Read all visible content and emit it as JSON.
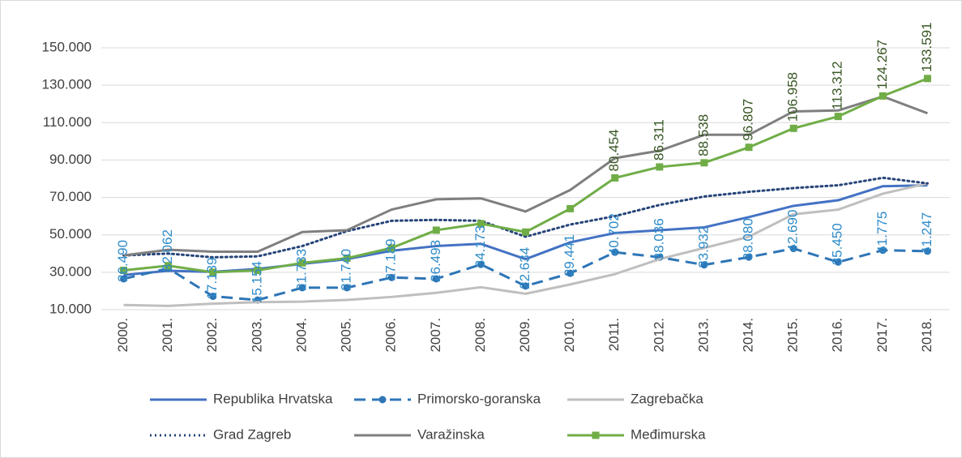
{
  "chart_data": {
    "type": "line",
    "categories": [
      "2000.",
      "2001.",
      "2002.",
      "2003.",
      "2004.",
      "2005.",
      "2006.",
      "2007.",
      "2008.",
      "2009.",
      "2010.",
      "2011.",
      "2012.",
      "2013.",
      "2014.",
      "2015.",
      "2016.",
      "2017.",
      "2018."
    ],
    "ylim": [
      10000,
      150000
    ],
    "yticks": [
      {
        "value": 10000,
        "label": "10.000"
      },
      {
        "value": 30000,
        "label": "30.000"
      },
      {
        "value": 50000,
        "label": "50.000"
      },
      {
        "value": 70000,
        "label": "70.000"
      },
      {
        "value": 90000,
        "label": "90.000"
      },
      {
        "value": 110000,
        "label": "110.000"
      },
      {
        "value": 130000,
        "label": "130.000"
      },
      {
        "value": 150000,
        "label": "150.000"
      }
    ],
    "grid": true,
    "legend": "bottom",
    "series": [
      {
        "name": "Republika Hrvatska",
        "color": "#4472c4",
        "line_style": "solid",
        "marker": null,
        "values": [
          28500,
          30800,
          30200,
          31800,
          34500,
          37000,
          41500,
          44000,
          45200,
          37000,
          46000,
          51000,
          52500,
          54000,
          59500,
          65500,
          68500,
          76000,
          76500
        ]
      },
      {
        "name": "Primorsko-goranska",
        "color": "#2e75b6",
        "line_style": "dashed",
        "marker": "circle",
        "label_color": "#2e8bc9",
        "values": [
          26490,
          32062,
          17139,
          15154,
          21733,
          21740,
          27189,
          26493,
          34173,
          22634,
          29441,
          40702,
          38036,
          33932,
          38080,
          42690,
          35450,
          41775,
          41247
        ],
        "value_labels": [
          "26.490",
          "32.062",
          "17.139",
          "15.154",
          "21.733",
          "21.740",
          "27.189",
          "26.493",
          "34.173",
          "22.634",
          "29.441",
          "40.702",
          "38.036",
          "33.932",
          "38.080",
          "42.690",
          "35.450",
          "41.775",
          "41.247"
        ]
      },
      {
        "name": "Zagrebačka",
        "color": "#bfbfbf",
        "line_style": "solid",
        "marker": null,
        "values": [
          12500,
          12000,
          13200,
          14000,
          14300,
          15200,
          16800,
          19000,
          22000,
          18500,
          23500,
          29000,
          37000,
          43000,
          49000,
          61000,
          63500,
          72000,
          77500
        ]
      },
      {
        "name": "Grad Zagreb",
        "color": "#264478",
        "line_style": "dotted",
        "marker": null,
        "values": [
          39000,
          40000,
          38000,
          38500,
          44000,
          52000,
          57500,
          58000,
          57500,
          49000,
          55500,
          60000,
          66000,
          70500,
          73000,
          75000,
          76500,
          80500,
          77500
        ]
      },
      {
        "name": "Varažinska",
        "color": "#7f7f7f",
        "line_style": "solid",
        "marker": null,
        "values": [
          39000,
          42000,
          41000,
          41000,
          51500,
          52500,
          63500,
          69000,
          69500,
          62500,
          74000,
          91000,
          95000,
          103500,
          103500,
          116000,
          116500,
          124000,
          115000
        ]
      },
      {
        "name": "Međimurska",
        "color": "#70ad47",
        "line_style": "solid",
        "marker": "square",
        "label_color": "#375623",
        "values": [
          31000,
          33500,
          30000,
          31000,
          35000,
          37500,
          43000,
          52500,
          56000,
          51500,
          64000,
          80454,
          86311,
          88538,
          96807,
          106958,
          113312,
          124267,
          133591
        ],
        "value_labels": [
          null,
          null,
          null,
          null,
          null,
          null,
          null,
          null,
          null,
          null,
          null,
          "80.454",
          "86.311",
          "88.538",
          "96.807",
          "106.958",
          "113.312",
          "124.267",
          "133.591"
        ]
      }
    ]
  }
}
